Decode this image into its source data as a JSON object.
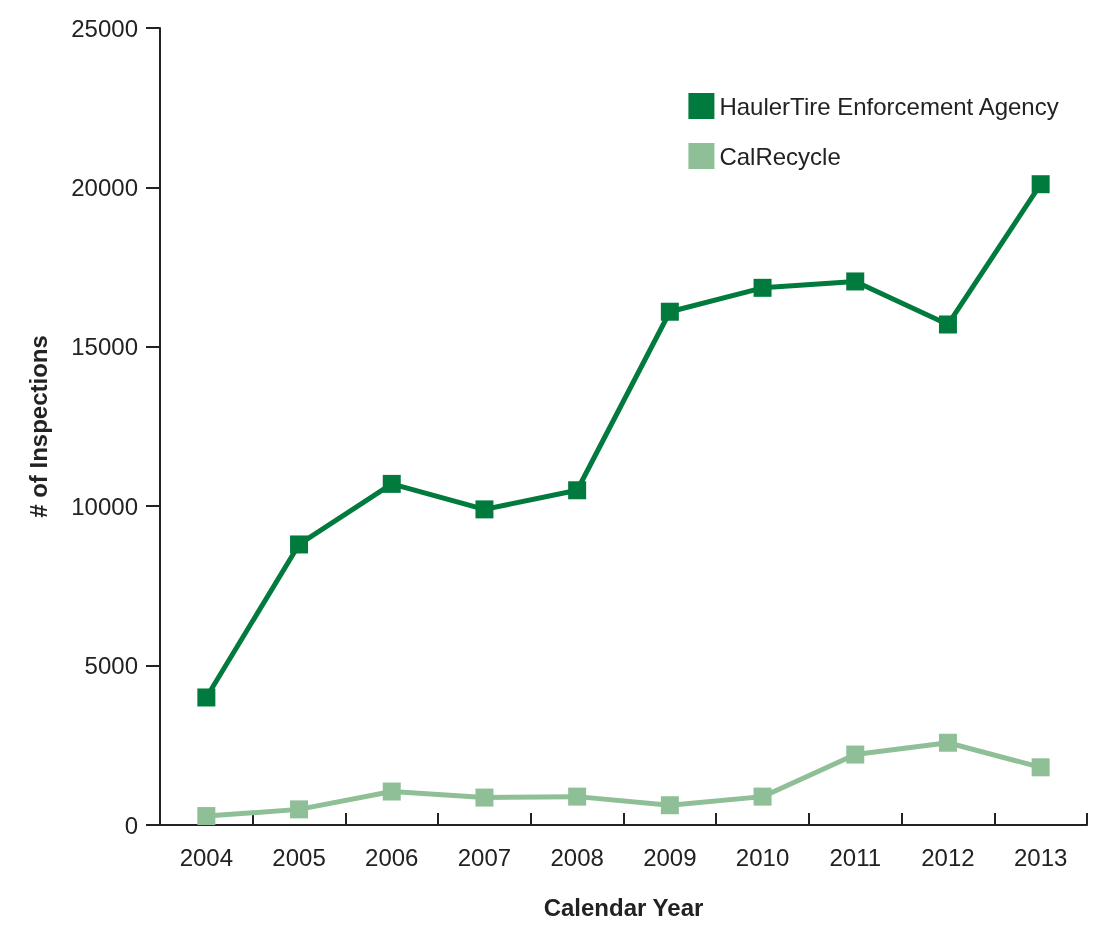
{
  "chart_data": {
    "type": "line",
    "xlabel": "Calendar Year",
    "ylabel": "# of Inspections",
    "categories": [
      "2004",
      "2005",
      "2006",
      "2007",
      "2008",
      "2009",
      "2010",
      "2011",
      "2012",
      "2013"
    ],
    "series": [
      {
        "name": "HaulerTire Enforcement Agency",
        "color": "#007a3d",
        "values": [
          4000,
          8800,
          10700,
          9900,
          10500,
          16100,
          16850,
          17050,
          15700,
          20100
        ]
      },
      {
        "name": "CalRecycle",
        "color": "#8fbf96",
        "values": [
          280,
          490,
          1050,
          860,
          890,
          620,
          890,
          2210,
          2580,
          1810
        ]
      }
    ],
    "ylim": [
      0,
      25000
    ],
    "yticks": [
      0,
      5000,
      10000,
      15000,
      20000,
      25000
    ],
    "grid": false,
    "legend": "top right",
    "marker": "square",
    "line_style": "solid"
  }
}
